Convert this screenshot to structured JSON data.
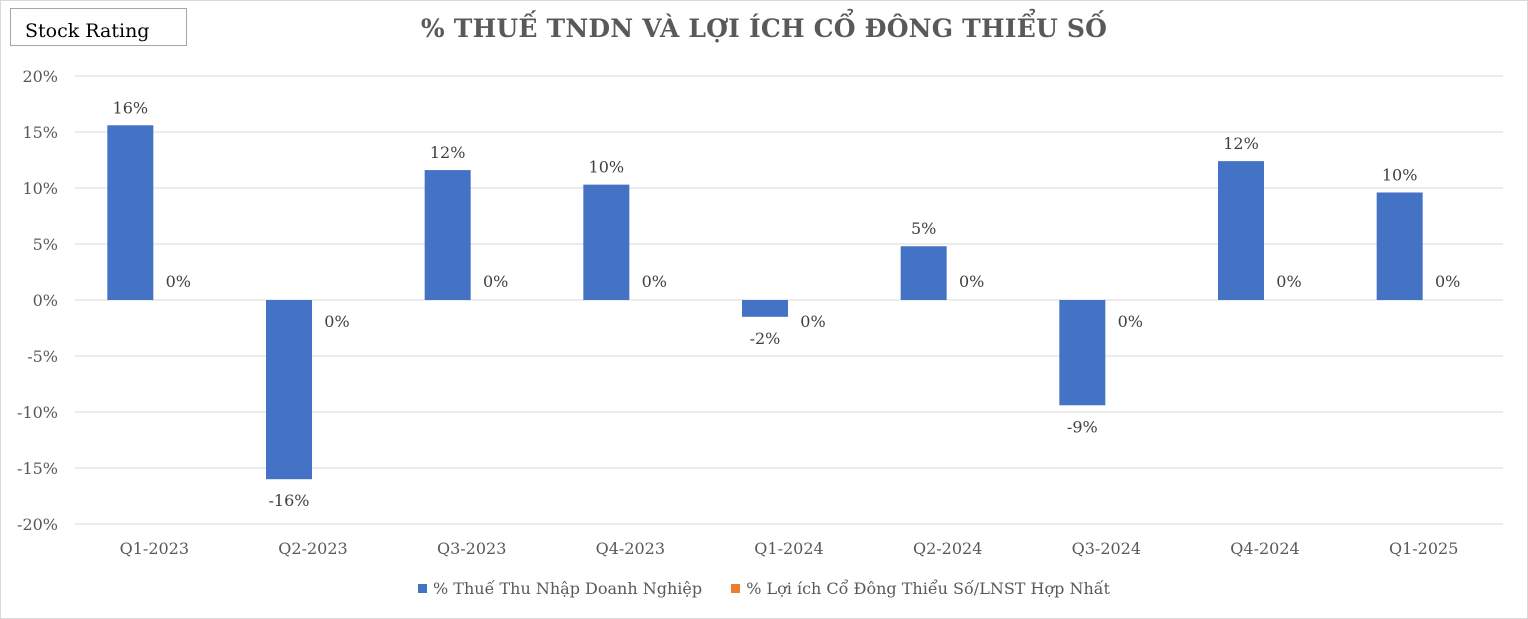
{
  "badge_label": "Stock Rating",
  "chart_data": {
    "type": "bar",
    "title": "% THUẾ TNDN VÀ LỢI ÍCH CỔ ĐÔNG THIỂU SỐ",
    "categories": [
      "Q1-2023",
      "Q2-2023",
      "Q3-2023",
      "Q4-2023",
      "Q1-2024",
      "Q2-2024",
      "Q3-2024",
      "Q4-2024",
      "Q1-2025"
    ],
    "series": [
      {
        "name": "% Thuế Thu Nhập Doanh Nghiệp",
        "color": "#4472c4",
        "values": [
          15.6,
          -16.0,
          11.6,
          10.3,
          -1.5,
          4.8,
          -9.4,
          12.4,
          9.6
        ],
        "labels": [
          "16%",
          "-16%",
          "12%",
          "10%",
          "-2%",
          "5%",
          "-9%",
          "12%",
          "10%"
        ]
      },
      {
        "name": "% Lợi ích Cổ Đông Thiểu Số/LNST Hợp Nhất",
        "color": "#ed7d31",
        "values": [
          0,
          0,
          0,
          0,
          0,
          0,
          0,
          0,
          0
        ],
        "labels": [
          "0%",
          "0%",
          "0%",
          "0%",
          "0%",
          "0%",
          "0%",
          "0%",
          "0%"
        ]
      }
    ],
    "ylim": [
      -20,
      20
    ],
    "yticks": [
      20,
      15,
      10,
      5,
      0,
      -5,
      -10,
      -15,
      -20
    ],
    "ytick_labels": [
      "20%",
      "15%",
      "10%",
      "5%",
      "0%",
      "-5%",
      "-10%",
      "-15%",
      "-20%"
    ],
    "grid": true,
    "legend_position": "bottom"
  }
}
